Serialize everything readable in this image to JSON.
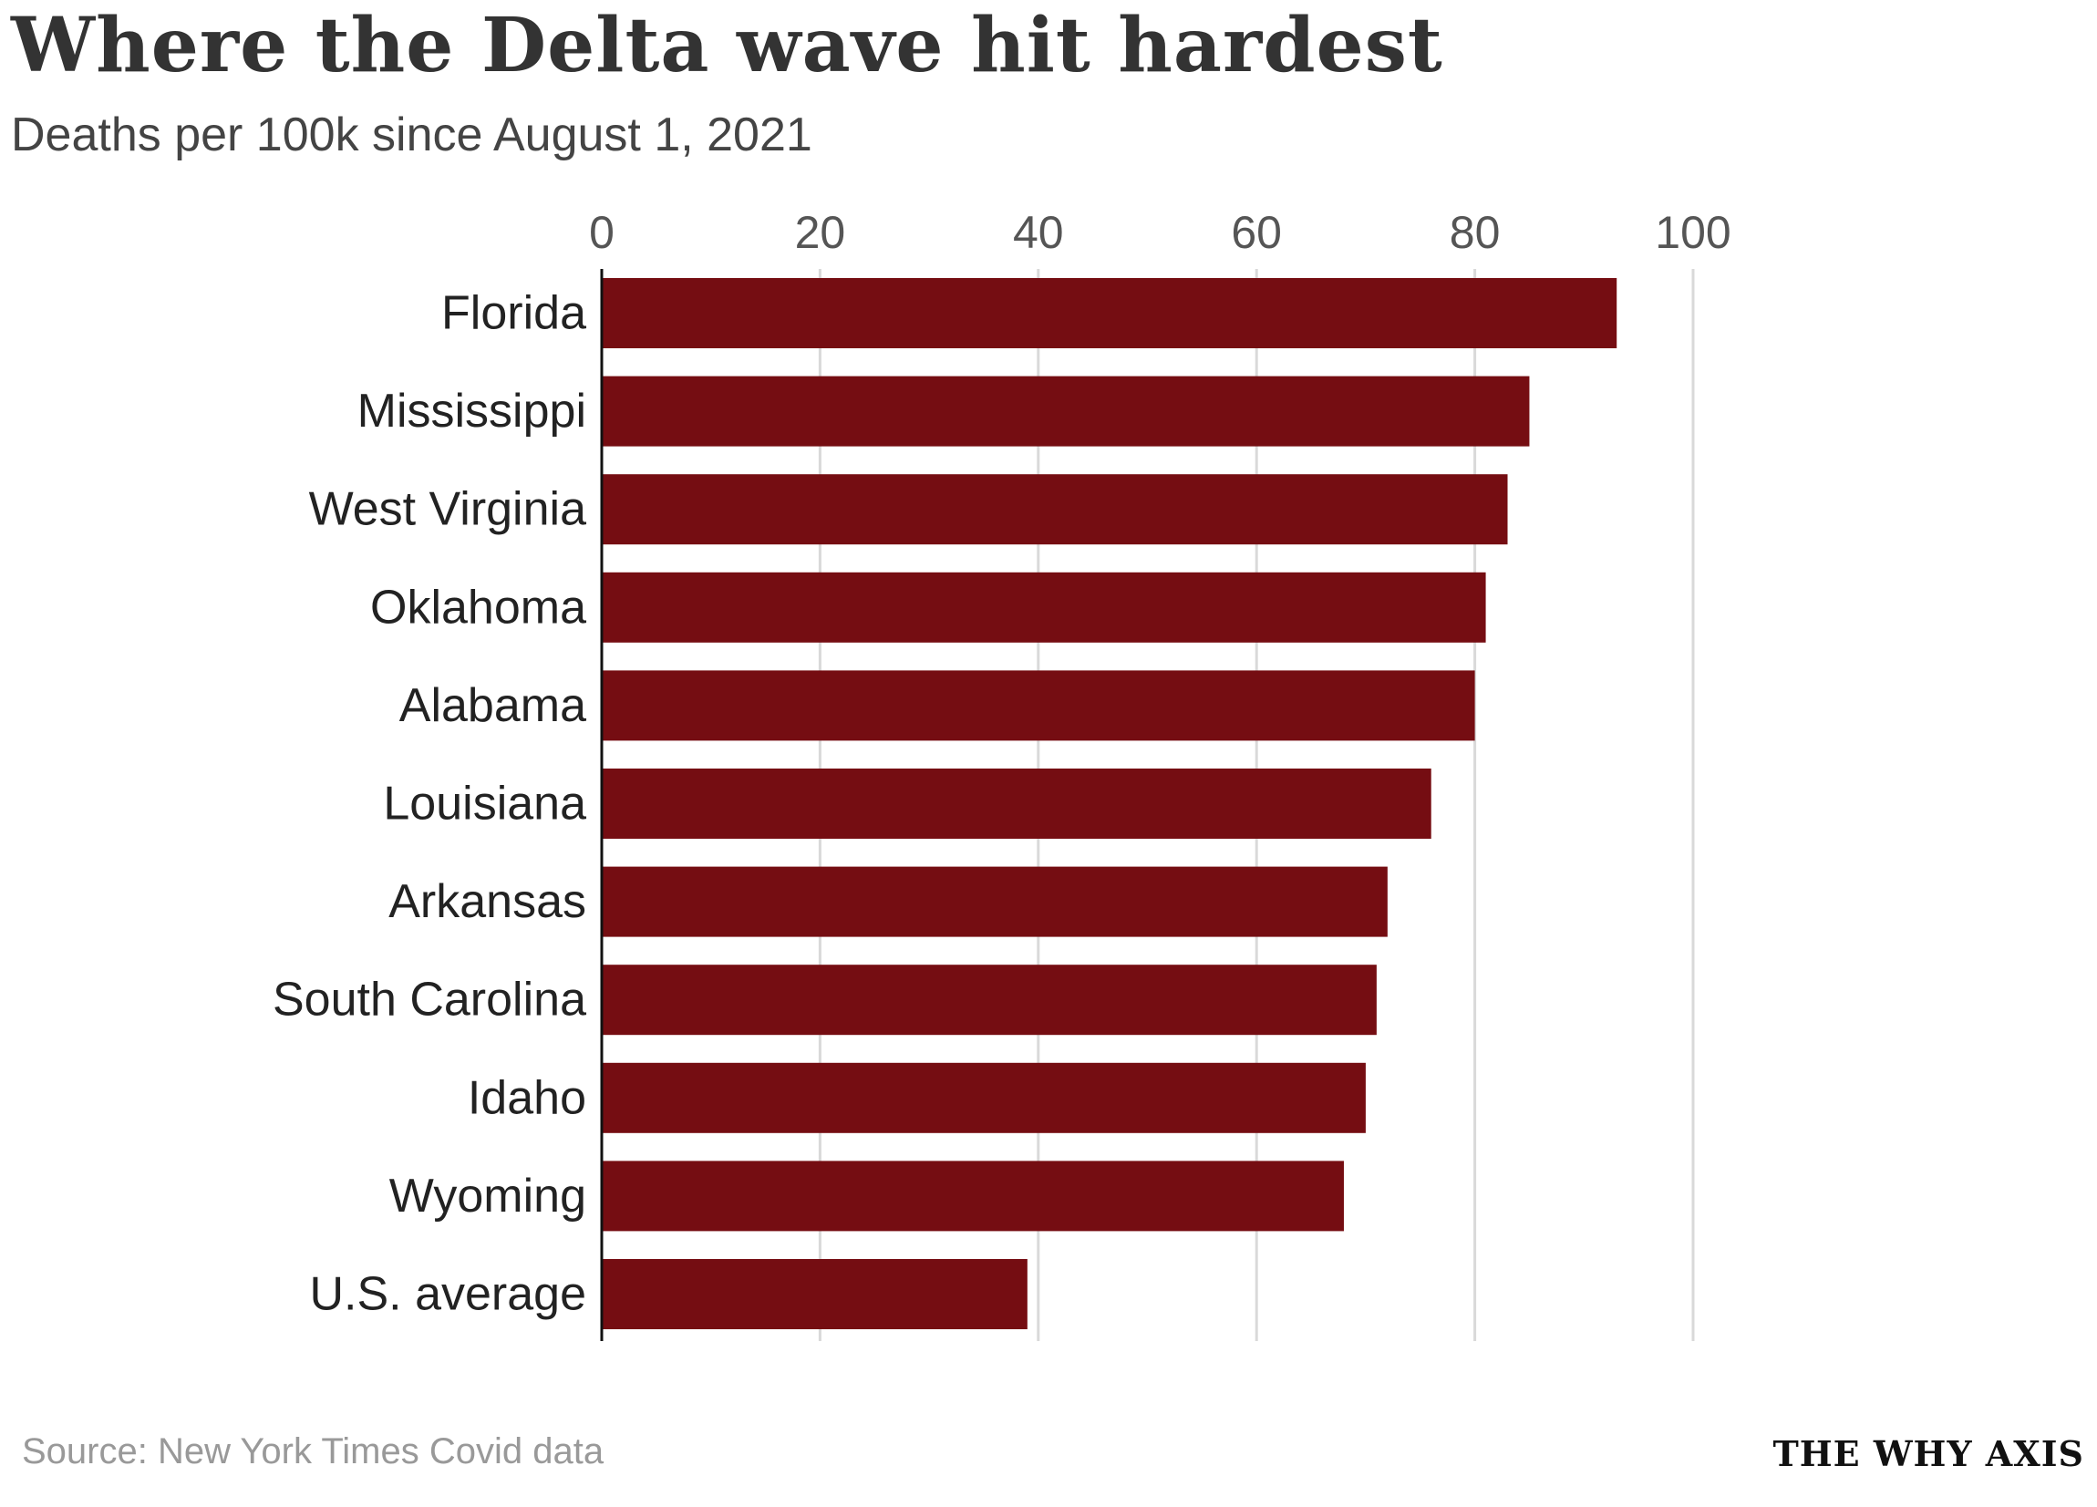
{
  "chart_data": {
    "type": "bar",
    "orientation": "horizontal",
    "title": "Where the Delta wave hit hardest",
    "subtitle": "Deaths per 100k since August 1, 2021",
    "categories": [
      "Florida",
      "Mississippi",
      "West Virginia",
      "Oklahoma",
      "Alabama",
      "Louisiana",
      "Arkansas",
      "South Carolina",
      "Idaho",
      "Wyoming",
      "U.S. average"
    ],
    "values": [
      93,
      85,
      83,
      81,
      80,
      76,
      72,
      71,
      70,
      68,
      39
    ],
    "xlim": [
      0,
      100
    ],
    "xticks": [
      "0",
      "20",
      "40",
      "60",
      "80",
      "100"
    ],
    "xlabel": "",
    "ylabel": "",
    "grid": true,
    "bar_color": "#750d12"
  },
  "source": "Source: New York Times Covid data",
  "logo": "THE WHY AXIS"
}
